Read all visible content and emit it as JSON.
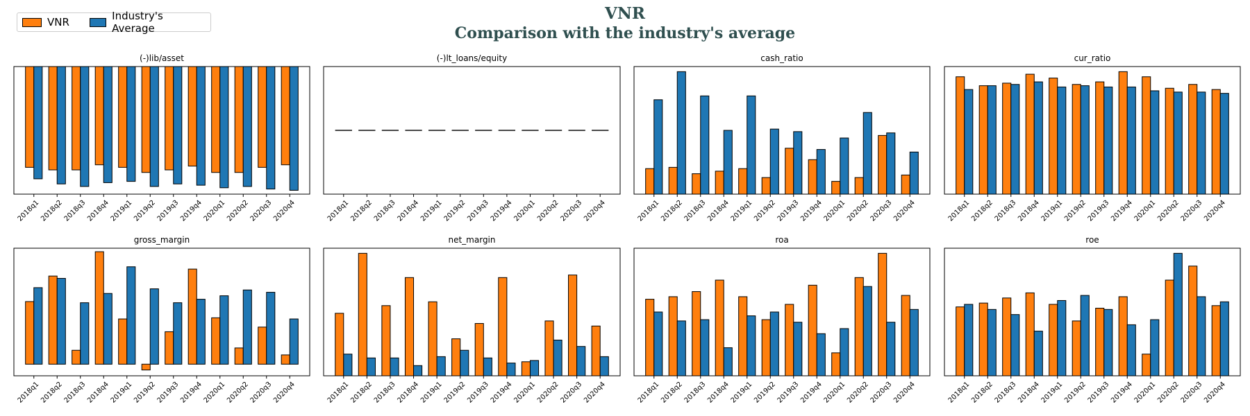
{
  "title": "VNR",
  "subtitle": "Comparison with the industry's average",
  "legend": [
    {
      "name": "VNR",
      "color": "#ff7f0e"
    },
    {
      "name": "Industry's Average",
      "color": "#1f77b4"
    }
  ],
  "chart_data": [
    {
      "type": "bar",
      "title": "(-)lib/asset",
      "categories": [
        "2018q1",
        "2018q2",
        "2018q3",
        "2018q4",
        "2019q1",
        "2019q2",
        "2019q3",
        "2019q4",
        "2020q1",
        "2020q2",
        "2020q3",
        "2020q4"
      ],
      "ylim": [
        -1.0,
        0.0
      ],
      "series": [
        {
          "name": "VNR",
          "values": [
            -0.79,
            -0.81,
            -0.81,
            -0.77,
            -0.79,
            -0.83,
            -0.81,
            -0.78,
            -0.83,
            -0.83,
            -0.79,
            -0.77
          ]
        },
        {
          "name": "Industry's Average",
          "values": [
            -0.88,
            -0.92,
            -0.94,
            -0.91,
            -0.9,
            -0.94,
            -0.92,
            -0.93,
            -0.95,
            -0.94,
            -0.96,
            -0.97
          ]
        }
      ]
    },
    {
      "type": "line",
      "title": "(-)lt_loans/equity",
      "categories": [
        "2018q1",
        "2018q2",
        "2018q3",
        "2018q4",
        "2019q1",
        "2019q2",
        "2019q3",
        "2019q4",
        "2020q1",
        "2020q2",
        "2020q3",
        "2020q4"
      ],
      "ylim": [
        -0.05,
        0.05
      ],
      "series": [
        {
          "name": "VNR",
          "values": [
            0,
            0,
            0,
            0,
            0,
            0,
            0,
            0,
            0,
            0,
            0,
            0
          ]
        },
        {
          "name": "Industry's Average",
          "values": [
            0,
            0,
            0,
            0,
            0,
            0,
            0,
            0,
            0,
            0,
            0,
            0
          ]
        }
      ]
    },
    {
      "type": "bar",
      "title": "cash_ratio",
      "categories": [
        "2018q1",
        "2018q2",
        "2018q3",
        "2018q4",
        "2019q1",
        "2019q2",
        "2019q3",
        "2019q4",
        "2020q1",
        "2020q2",
        "2020q3",
        "2020q4"
      ],
      "ylim": [
        0,
        1.0
      ],
      "series": [
        {
          "name": "VNR",
          "values": [
            0.2,
            0.21,
            0.16,
            0.18,
            0.2,
            0.13,
            0.36,
            0.27,
            0.1,
            0.13,
            0.46,
            0.15
          ]
        },
        {
          "name": "Industry's Average",
          "values": [
            0.74,
            0.96,
            0.77,
            0.5,
            0.77,
            0.51,
            0.49,
            0.35,
            0.44,
            0.64,
            0.48,
            0.33
          ]
        }
      ]
    },
    {
      "type": "bar",
      "title": "cur_ratio",
      "categories": [
        "2018q1",
        "2018q2",
        "2018q3",
        "2018q4",
        "2019q1",
        "2019q2",
        "2019q3",
        "2019q4",
        "2020q1",
        "2020q2",
        "2020q3",
        "2020q4"
      ],
      "ylim": [
        0,
        10
      ],
      "series": [
        {
          "name": "VNR",
          "values": [
            9.2,
            8.5,
            8.7,
            9.4,
            9.1,
            8.6,
            8.8,
            9.6,
            9.2,
            8.3,
            8.6,
            8.2
          ]
        },
        {
          "name": "Industry's Average",
          "values": [
            8.2,
            8.5,
            8.6,
            8.8,
            8.4,
            8.5,
            8.4,
            8.4,
            8.1,
            8.0,
            8.0,
            7.9
          ]
        }
      ]
    },
    {
      "type": "bar",
      "title": "gross_margin",
      "categories": [
        "2018q1",
        "2018q2",
        "2018q3",
        "2018q4",
        "2019q1",
        "2019q2",
        "2019q3",
        "2019q4",
        "2020q1",
        "2020q2",
        "2020q3",
        "2020q4"
      ],
      "ylim": [
        -0.1,
        1.0
      ],
      "series": [
        {
          "name": "VNR",
          "values": [
            0.54,
            0.76,
            0.12,
            0.97,
            0.39,
            -0.05,
            0.28,
            0.82,
            0.4,
            0.14,
            0.32,
            0.08
          ]
        },
        {
          "name": "Industry's Average",
          "values": [
            0.66,
            0.74,
            0.53,
            0.61,
            0.84,
            0.65,
            0.53,
            0.56,
            0.59,
            0.64,
            0.62,
            0.39
          ]
        }
      ]
    },
    {
      "type": "bar",
      "title": "net_margin",
      "categories": [
        "2018q1",
        "2018q2",
        "2018q3",
        "2018q4",
        "2019q1",
        "2019q2",
        "2019q3",
        "2019q4",
        "2020q1",
        "2020q2",
        "2020q3",
        "2020q4"
      ],
      "ylim": [
        0,
        1.0
      ],
      "series": [
        {
          "name": "VNR",
          "values": [
            0.49,
            0.96,
            0.55,
            0.77,
            0.58,
            0.29,
            0.41,
            0.77,
            0.11,
            0.43,
            0.79,
            0.39
          ]
        },
        {
          "name": "Industry's Average",
          "values": [
            0.17,
            0.14,
            0.14,
            0.08,
            0.15,
            0.2,
            0.14,
            0.1,
            0.12,
            0.28,
            0.23,
            0.15
          ]
        }
      ]
    },
    {
      "type": "bar",
      "title": "roa",
      "categories": [
        "2018q1",
        "2018q2",
        "2018q3",
        "2018q4",
        "2019q1",
        "2019q2",
        "2019q3",
        "2019q4",
        "2020q1",
        "2020q2",
        "2020q3",
        "2020q4"
      ],
      "ylim": [
        0,
        1.0
      ],
      "series": [
        {
          "name": "VNR",
          "values": [
            0.6,
            0.62,
            0.66,
            0.75,
            0.62,
            0.44,
            0.56,
            0.71,
            0.18,
            0.77,
            0.96,
            0.63
          ]
        },
        {
          "name": "Industry's Average",
          "values": [
            0.5,
            0.43,
            0.44,
            0.22,
            0.47,
            0.5,
            0.42,
            0.33,
            0.37,
            0.7,
            0.42,
            0.52
          ]
        }
      ]
    },
    {
      "type": "bar",
      "title": "roe",
      "categories": [
        "2018q1",
        "2018q2",
        "2018q3",
        "2018q4",
        "2019q1",
        "2019q2",
        "2019q3",
        "2019q4",
        "2020q1",
        "2020q2",
        "2020q3",
        "2020q4"
      ],
      "ylim": [
        0,
        1.0
      ],
      "series": [
        {
          "name": "VNR",
          "values": [
            0.54,
            0.57,
            0.61,
            0.65,
            0.56,
            0.43,
            0.53,
            0.62,
            0.17,
            0.75,
            0.86,
            0.55
          ]
        },
        {
          "name": "Industry's Average",
          "values": [
            0.56,
            0.52,
            0.48,
            0.35,
            0.59,
            0.63,
            0.52,
            0.4,
            0.44,
            0.96,
            0.62,
            0.58
          ]
        }
      ]
    }
  ]
}
